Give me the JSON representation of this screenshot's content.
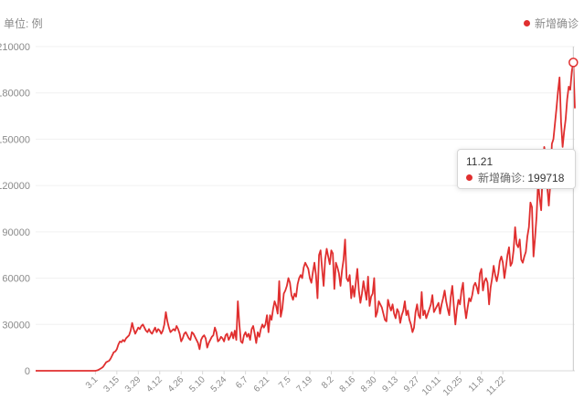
{
  "unit_label": "单位: 例",
  "legend": {
    "label": "新增确诊",
    "color": "#e02f2f"
  },
  "tooltip": {
    "date": "11.21",
    "name": "新增确诊",
    "colon": ":",
    "value": "199718"
  },
  "chart_data": {
    "type": "line",
    "title": "",
    "xlabel": "",
    "ylabel": "单位: 例",
    "ylim": [
      0,
      210000
    ],
    "yticks": [
      0,
      30000,
      60000,
      90000,
      120000,
      150000,
      180000,
      210000
    ],
    "xticks": [
      "3.1",
      "3.15",
      "3.29",
      "4.12",
      "4.26",
      "5.10",
      "5.24",
      "6.7",
      "6.21",
      "7.5",
      "7.19",
      "8.2",
      "8.16",
      "8.30",
      "9.13",
      "9.27",
      "10.11",
      "10.25",
      "11.8",
      "11.22"
    ],
    "grid": true,
    "legend_position": "top-right",
    "highlight": {
      "date": "11.21",
      "value": 199718
    },
    "series": [
      {
        "name": "新增确诊",
        "color": "#e02f2f",
        "start_date": "1.22",
        "values": [
          0,
          0,
          0,
          0,
          0,
          0,
          0,
          0,
          0,
          0,
          0,
          0,
          0,
          0,
          0,
          0,
          0,
          0,
          0,
          0,
          0,
          0,
          0,
          0,
          0,
          0,
          0,
          0,
          0,
          0,
          0,
          0,
          0,
          0,
          0,
          0,
          0,
          0,
          0,
          0,
          200,
          600,
          1200,
          1800,
          2500,
          4000,
          5500,
          6000,
          6500,
          8000,
          10000,
          12000,
          12500,
          14000,
          17000,
          19000,
          18500,
          20000,
          19000,
          21000,
          22000,
          23000,
          26000,
          31000,
          27000,
          24000,
          26000,
          28000,
          27000,
          29000,
          30000,
          28000,
          26000,
          25000,
          27000,
          25000,
          24000,
          26000,
          28000,
          25000,
          27000,
          26000,
          24000,
          26000,
          30000,
          38000,
          32000,
          28000,
          25000,
          26000,
          27000,
          26000,
          29000,
          27000,
          24000,
          19000,
          21000,
          24000,
          25000,
          23000,
          21000,
          20000,
          25000,
          24000,
          22000,
          20000,
          18000,
          14000,
          20000,
          22000,
          23000,
          21000,
          15000,
          18000,
          20000,
          22000,
          23000,
          28000,
          25000,
          19000,
          20000,
          22000,
          21000,
          19000,
          23000,
          24000,
          20000,
          22000,
          25000,
          21000,
          26000,
          20000,
          45000,
          30000,
          19000,
          18000,
          23000,
          25000,
          22000,
          24000,
          20000,
          27000,
          29000,
          24000,
          18000,
          25000,
          22000,
          27000,
          30000,
          28000,
          30000,
          36000,
          25000,
          36000,
          33000,
          40000,
          45000,
          42000,
          37000,
          58000,
          35000,
          40000,
          50000,
          52000,
          55000,
          60000,
          57000,
          49000,
          46000,
          50000,
          48000,
          56000,
          60000,
          62000,
          60000,
          67000,
          70000,
          68000,
          66000,
          60000,
          57000,
          64000,
          70000,
          62000,
          47000,
          75000,
          78000,
          66000,
          55000,
          72000,
          79000,
          74000,
          69000,
          78000,
          76000,
          53000,
          70000,
          67000,
          63000,
          55000,
          65000,
          72000,
          85000,
          60000,
          58000,
          62000,
          47000,
          55000,
          48000,
          57000,
          66000,
          52000,
          44000,
          50000,
          58000,
          52000,
          46000,
          61000,
          42000,
          48000,
          50000,
          60000,
          35000,
          38000,
          45000,
          43000,
          41000,
          37000,
          33000,
          32000,
          46000,
          42000,
          39000,
          43000,
          37000,
          34000,
          40000,
          38000,
          31000,
          36000,
          39000,
          45000,
          36000,
          39000,
          33000,
          30000,
          25000,
          28000,
          38000,
          43000,
          36000,
          34000,
          51000,
          36000,
          39000,
          34000,
          37000,
          40000,
          43000,
          49000,
          38000,
          40000,
          42000,
          44000,
          37000,
          43000,
          47000,
          52000,
          45000,
          40000,
          36000,
          48000,
          55000,
          42000,
          30000,
          40000,
          46000,
          43000,
          52000,
          57000,
          42000,
          34000,
          41000,
          47000,
          45000,
          49000,
          55000,
          57000,
          54000,
          50000,
          63000,
          66000,
          52000,
          58000,
          60000,
          57000,
          43000,
          54000,
          60000,
          68000,
          62000,
          58000,
          63000,
          71000,
          74000,
          70000,
          60000,
          67000,
          75000,
          80000,
          68000,
          70000,
          78000,
          93000,
          82000,
          80000,
          85000,
          72000,
          70000,
          74000,
          77000,
          87000,
          93000,
          109000,
          106000,
          74000,
          86000,
          100000,
          122000,
          112000,
          104000,
          129000,
          145000,
          139000,
          119000,
          107000,
          122000,
          147000,
          150000,
          160000,
          170000,
          181000,
          190000,
          161000,
          145000,
          155000,
          163000,
          176000,
          184000,
          182000,
          194000,
          199718,
          170000
        ]
      }
    ]
  }
}
